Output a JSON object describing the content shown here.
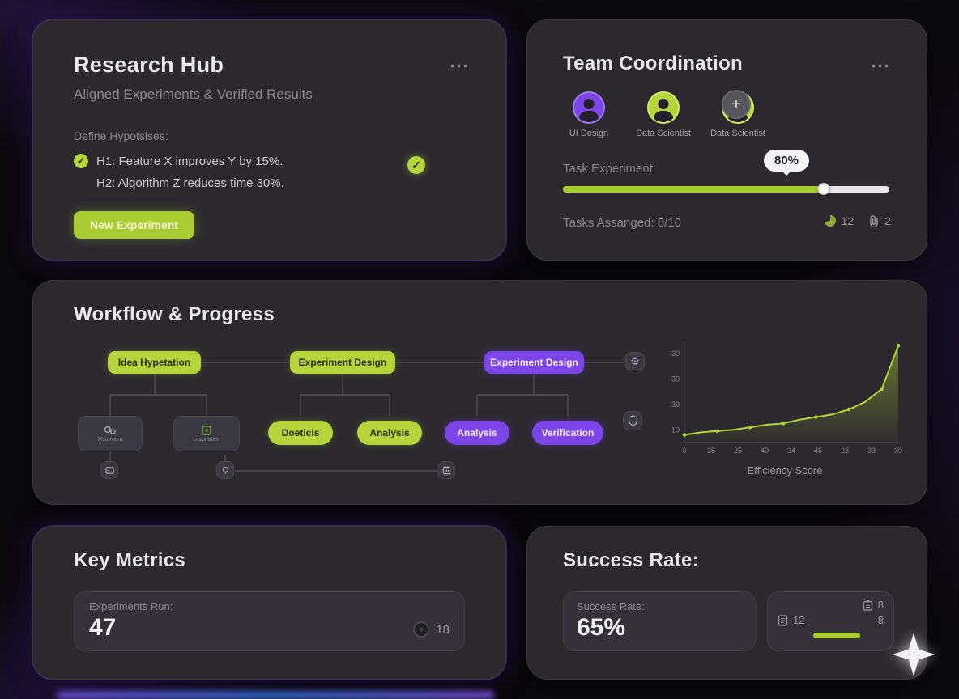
{
  "research_hub": {
    "title": "Research Hub",
    "subtitle": "Aligned Experiments & Verified Results",
    "menu_label": "•••",
    "hypotheses_heading": "Define Hypotsises:",
    "check_glyph": "✓",
    "hypotheses": [
      "H1: Feature X improves Y by 15%.",
      "H2: Algorithm Z reduces time 30%."
    ],
    "new_experiment_button": "New Experiment"
  },
  "team_coordination": {
    "title": "Team Coordination",
    "menu_label": "•••",
    "members": [
      {
        "name": "UI Design"
      },
      {
        "name": "Data Scientist"
      },
      {
        "name": "Data Scientist"
      }
    ],
    "add_member_label": "+",
    "task_label": "Task Experiment:",
    "progress_value": "80%",
    "progress_pct": 80,
    "tasks_assigned_label": "Tasks Assanged: 8/10",
    "pie_count": "12",
    "attachment_count": "2"
  },
  "workflow": {
    "title": "Workflow & Progress",
    "row1": [
      {
        "label": "Idea Hypetation"
      },
      {
        "label": "Experiment Design"
      },
      {
        "label": "Experiment Design"
      }
    ],
    "row2": [
      {
        "label": "Mstorocra"
      },
      {
        "label": "Litsonatien"
      },
      {
        "label": "Doeticis"
      },
      {
        "label": "Analysis"
      },
      {
        "label": "Analysis"
      },
      {
        "label": "Verification"
      }
    ]
  },
  "chart_data": {
    "type": "area",
    "title": "Efficiency Score",
    "x": [
      0,
      1,
      2,
      3,
      4,
      5,
      6,
      7,
      8,
      9,
      10,
      11,
      12,
      13
    ],
    "values": [
      3,
      4,
      4.5,
      5,
      6,
      7,
      7.5,
      9,
      10,
      11,
      13,
      16,
      21,
      38
    ],
    "ylim": [
      0,
      40
    ],
    "y_tick_labels": [
      "30",
      "30",
      "39",
      "10"
    ],
    "x_tick_labels": [
      "0",
      "35",
      "25",
      "40",
      "34",
      "45",
      "23",
      "33",
      "30"
    ],
    "line_color": "#b7d43c",
    "grid": false,
    "legend": "none"
  },
  "key_metrics": {
    "title": "Key Metrics",
    "experiments_label": "Experiments Run:",
    "experiments_value": "47",
    "badge_count": "18"
  },
  "success_rate": {
    "title": "Success Rate:",
    "panel_label": "Success Rate:",
    "panel_value": "65%",
    "clipboard_count": "8",
    "doc_count": "12",
    "secondary_count": "8"
  }
}
